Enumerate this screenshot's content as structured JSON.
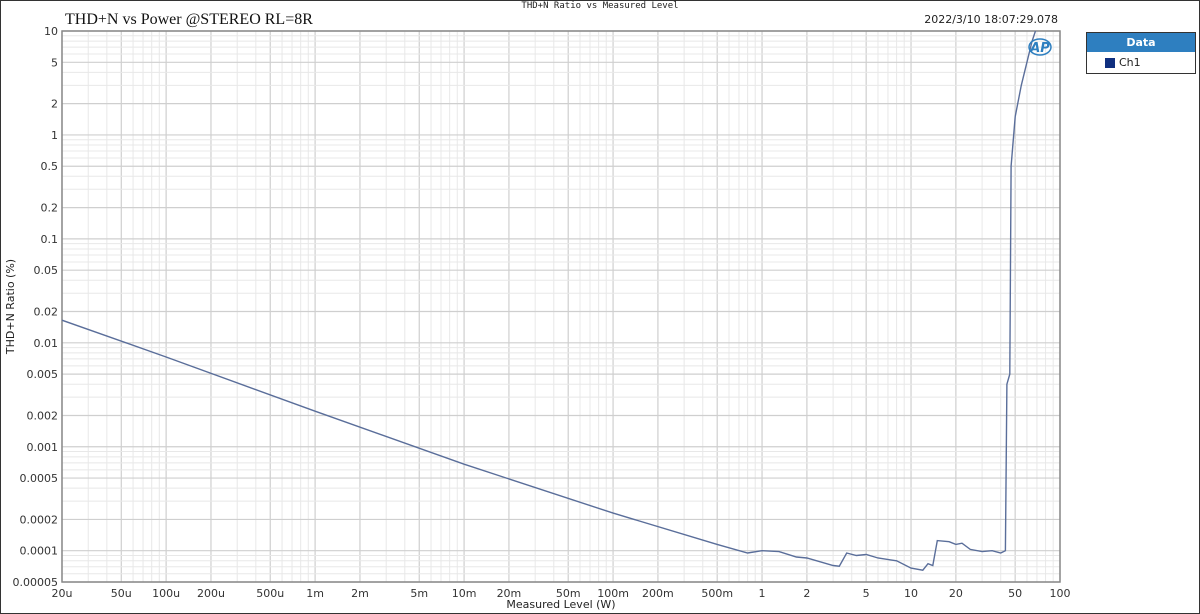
{
  "window_title": "THD+N Ratio vs Measured Level",
  "graph_title": "THD+N vs Power @STEREO RL=8R",
  "timestamp": "2022/3/10 18:07:29.078",
  "logo": "AP",
  "legend": {
    "title": "Data",
    "items": [
      {
        "label": "Ch1",
        "color": "#0f2f7f"
      }
    ]
  },
  "chart_data": {
    "type": "line",
    "xlabel": "Measured Level (W)",
    "ylabel": "THD+N Ratio (%)",
    "xscale": "log",
    "yscale": "log",
    "xlim": [
      2e-05,
      100
    ],
    "ylim": [
      5e-05,
      10
    ],
    "grid": true,
    "legend_placement": "right",
    "x_ticks": [
      {
        "v": 2e-05,
        "l": "20u"
      },
      {
        "v": 5e-05,
        "l": "50u"
      },
      {
        "v": 0.0001,
        "l": "100u"
      },
      {
        "v": 0.0002,
        "l": "200u"
      },
      {
        "v": 0.0005,
        "l": "500u"
      },
      {
        "v": 0.001,
        "l": "1m"
      },
      {
        "v": 0.002,
        "l": "2m"
      },
      {
        "v": 0.005,
        "l": "5m"
      },
      {
        "v": 0.01,
        "l": "10m"
      },
      {
        "v": 0.02,
        "l": "20m"
      },
      {
        "v": 0.05,
        "l": "50m"
      },
      {
        "v": 0.1,
        "l": "100m"
      },
      {
        "v": 0.2,
        "l": "200m"
      },
      {
        "v": 0.5,
        "l": "500m"
      },
      {
        "v": 1,
        "l": "1"
      },
      {
        "v": 2,
        "l": "2"
      },
      {
        "v": 5,
        "l": "5"
      },
      {
        "v": 10,
        "l": "10"
      },
      {
        "v": 20,
        "l": "20"
      },
      {
        "v": 50,
        "l": "50"
      },
      {
        "v": 100,
        "l": "100"
      }
    ],
    "y_ticks": [
      {
        "v": 10,
        "l": "10"
      },
      {
        "v": 5,
        "l": "5"
      },
      {
        "v": 2,
        "l": "2"
      },
      {
        "v": 1,
        "l": "1"
      },
      {
        "v": 0.5,
        "l": "0.5"
      },
      {
        "v": 0.2,
        "l": "0.2"
      },
      {
        "v": 0.1,
        "l": "0.1"
      },
      {
        "v": 0.05,
        "l": "0.05"
      },
      {
        "v": 0.02,
        "l": "0.02"
      },
      {
        "v": 0.01,
        "l": "0.01"
      },
      {
        "v": 0.005,
        "l": "0.005"
      },
      {
        "v": 0.002,
        "l": "0.002"
      },
      {
        "v": 0.001,
        "l": "0.001"
      },
      {
        "v": 0.0005,
        "l": "0.0005"
      },
      {
        "v": 0.0002,
        "l": "0.0002"
      },
      {
        "v": 0.0001,
        "l": "0.0001"
      },
      {
        "v": 5e-05,
        "l": "0.00005"
      }
    ],
    "series": [
      {
        "name": "Ch1",
        "color": "#5a6e9a",
        "x": [
          2e-05,
          0.0001,
          0.001,
          0.01,
          0.1,
          0.5,
          0.8,
          1.0,
          1.3,
          1.7,
          2.0,
          3.0,
          3.3,
          3.7,
          4.3,
          5.0,
          6.0,
          8.0,
          10,
          12,
          13,
          14,
          15,
          18,
          20,
          22,
          25,
          30,
          35,
          40,
          43,
          44,
          46,
          47,
          50,
          55,
          65,
          70
        ],
        "y": [
          0.0165,
          0.0073,
          0.0022,
          0.00068,
          0.00023,
          0.000115,
          9.5e-05,
          0.0001,
          9.8e-05,
          8.7e-05,
          8.5e-05,
          7.2e-05,
          7.1e-05,
          9.5e-05,
          9e-05,
          9.2e-05,
          8.5e-05,
          8e-05,
          6.8e-05,
          6.5e-05,
          7.5e-05,
          7.2e-05,
          0.000125,
          0.000122,
          0.000115,
          0.000118,
          0.000103,
          9.8e-05,
          0.0001,
          9.5e-05,
          0.0001,
          0.004,
          0.005,
          0.5,
          1.5,
          3,
          8,
          11
        ]
      }
    ]
  }
}
